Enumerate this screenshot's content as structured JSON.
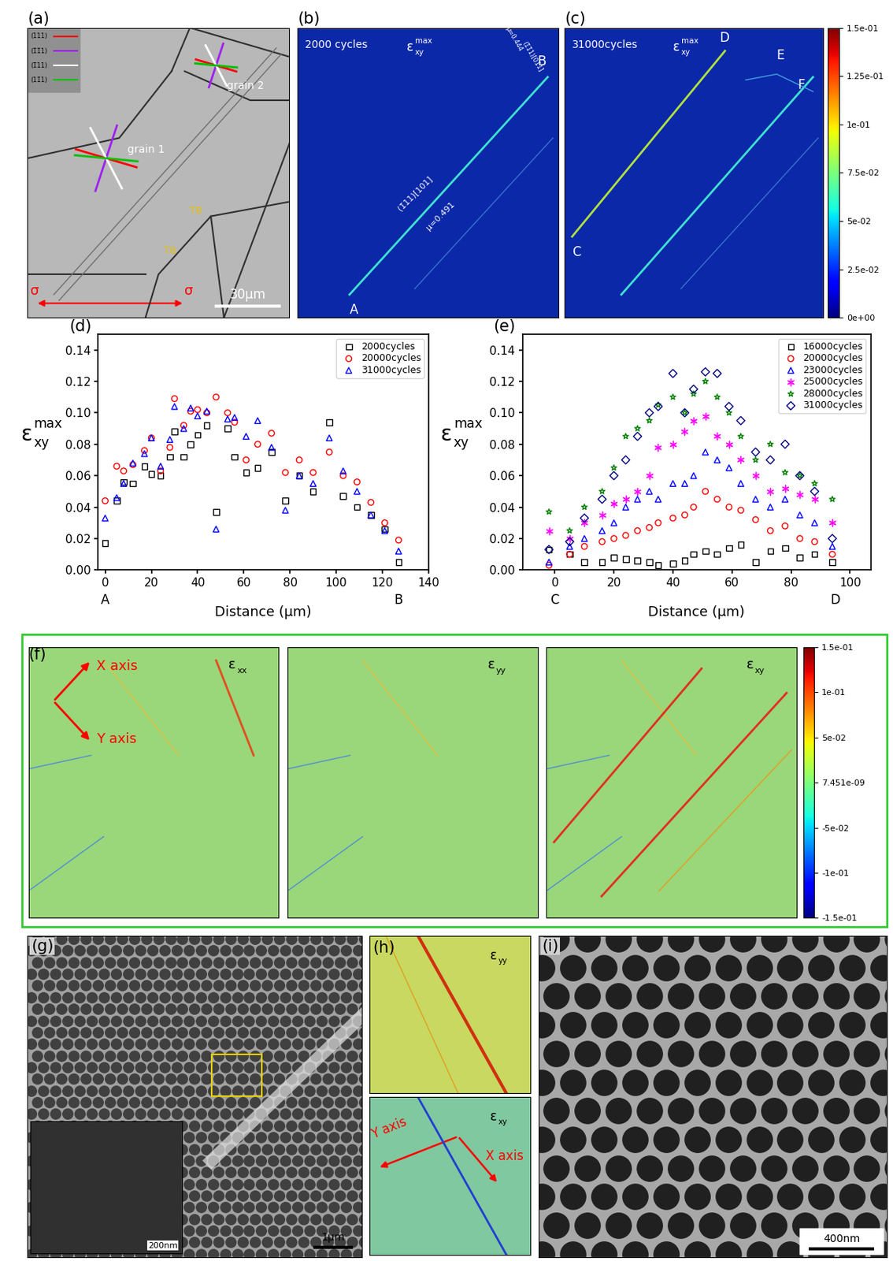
{
  "panels": {
    "a": {
      "label": "(a)",
      "legend": [
        {
          "text": "(111)",
          "color": "#ff0000"
        },
        {
          "text": "(1̄1̄1)",
          "color": "#a020f0"
        },
        {
          "text": "(1̄11)",
          "color": "#ffffff"
        },
        {
          "text": "(11̄1)",
          "color": "#00c000"
        }
      ],
      "texts": [
        "grain 1",
        "grain 2",
        "TB",
        "TB"
      ],
      "load": "σ",
      "scale_bar": "30μm"
    },
    "b": {
      "label": "(b)",
      "title": "2000 cycles",
      "quantity": {
        "symbol": "ε",
        "subscript": "xy",
        "superscript": "max"
      },
      "points": [
        "A",
        "B"
      ],
      "slip_systems": [
        {
          "plane": "(1̄11)[101]",
          "factor": "μ=0.491"
        },
        {
          "plane": "(1̄1̄1)[01̄1]",
          "factor": "μ=0.444"
        }
      ]
    },
    "c": {
      "label": "(c)",
      "title": "31000cycles",
      "quantity": {
        "symbol": "ε",
        "subscript": "xy",
        "superscript": "max"
      },
      "points": [
        "C",
        "D",
        "E",
        "F"
      ],
      "colorbar": {
        "range": [
          0,
          0.15
        ],
        "ticks": [
          {
            "value": 0,
            "label": "0e+00"
          },
          {
            "value": 0.025,
            "label": "2.5e-02"
          },
          {
            "value": 0.05,
            "label": "5e-02"
          },
          {
            "value": 0.075,
            "label": "7.5e-02"
          },
          {
            "value": 0.1,
            "label": "1e-01"
          },
          {
            "value": 0.125,
            "label": "1.25e-01"
          },
          {
            "value": 0.15,
            "label": "1.5e-01"
          }
        ]
      }
    },
    "f": {
      "label": "(f)",
      "axes_labels": [
        "X axis",
        "Y axis"
      ],
      "maps": [
        {
          "symbol": "ε",
          "subscript": "xx"
        },
        {
          "symbol": "ε",
          "subscript": "yy"
        },
        {
          "symbol": "ε",
          "subscript": "xy"
        }
      ],
      "colorbar": {
        "range": [
          -0.15,
          0.15
        ],
        "ticks": [
          {
            "value": 0.15,
            "label": "1.5e-01"
          },
          {
            "value": 0.1,
            "label": "1e-01"
          },
          {
            "value": 0.05,
            "label": "5e-02"
          },
          {
            "value": 7.451e-09,
            "label": "7.451e-09"
          },
          {
            "value": -0.05,
            "label": "-5e-02"
          },
          {
            "value": -0.1,
            "label": "-1e-01"
          },
          {
            "value": -0.15,
            "label": "-1.5e-01"
          }
        ]
      }
    },
    "g": {
      "label": "(g)",
      "scale_bar": "1μm",
      "inset_scale_bar": "200nm"
    },
    "h": {
      "label": "(h)",
      "maps": [
        {
          "symbol": "ε",
          "subscript": "yy"
        },
        {
          "symbol": "ε",
          "subscript": "xy"
        }
      ],
      "axes_labels": [
        "Y axis",
        "X axis"
      ]
    },
    "i": {
      "label": "(i)",
      "scale_bar": "400nm"
    }
  },
  "chart_data": [
    {
      "type": "scatter",
      "title": "(d)",
      "xlabel": "Distance (μm)",
      "ylabel": {
        "symbol": "ε",
        "subscript": "xy",
        "superscript": "max"
      },
      "x": [
        0,
        5,
        8,
        12,
        17,
        20,
        24,
        28,
        30,
        34,
        37,
        40,
        44,
        48,
        53,
        56,
        61,
        66,
        72,
        78,
        84,
        90,
        97,
        103,
        109,
        115,
        121,
        127
      ],
      "series": [
        {
          "name": "2000cycles",
          "color": "#000000",
          "marker": "square",
          "values": [
            0.017,
            0.044,
            0.056,
            0.055,
            0.066,
            0.061,
            0.06,
            0.072,
            0.088,
            0.072,
            0.08,
            0.086,
            0.092,
            0.037,
            0.09,
            0.072,
            0.062,
            0.065,
            0.075,
            0.044,
            0.06,
            0.05,
            0.094,
            0.047,
            0.04,
            0.035,
            0.026,
            0.005
          ]
        },
        {
          "name": "20000cycles",
          "color": "#ff0000",
          "marker": "circle",
          "values": [
            0.044,
            0.066,
            0.063,
            0.067,
            0.076,
            0.084,
            0.063,
            0.078,
            0.109,
            0.092,
            0.101,
            0.102,
            0.1,
            0.11,
            0.1,
            0.094,
            0.07,
            0.08,
            0.087,
            0.062,
            0.07,
            0.062,
            0.075,
            0.06,
            0.056,
            0.043,
            0.03,
            0.019
          ]
        },
        {
          "name": "31000cycles",
          "color": "#0000ff",
          "marker": "triangle",
          "values": [
            0.033,
            0.046,
            0.055,
            0.068,
            0.074,
            0.084,
            0.066,
            0.083,
            0.104,
            0.09,
            0.103,
            0.098,
            0.101,
            0.026,
            0.096,
            0.097,
            0.085,
            0.095,
            0.078,
            0.038,
            0.06,
            0.055,
            0.084,
            0.063,
            0.05,
            0.035,
            0.025,
            0.012
          ]
        }
      ],
      "xlim": [
        -3,
        140
      ],
      "xticks": [
        0,
        20,
        40,
        60,
        80,
        100,
        120,
        140
      ],
      "ylim": [
        0,
        0.15
      ],
      "yticks": [
        {
          "value": 0,
          "label": "0.00"
        },
        {
          "value": 0.02,
          "label": "0.02"
        },
        {
          "value": 0.04,
          "label": "0.04"
        },
        {
          "value": 0.06,
          "label": "0.06"
        },
        {
          "value": 0.08,
          "label": "0.08"
        },
        {
          "value": 0.1,
          "label": "0.10"
        },
        {
          "value": 0.12,
          "label": "0.12"
        },
        {
          "value": 0.14,
          "label": "0.14"
        }
      ],
      "legend": "upper right",
      "annotations": [
        {
          "text": "A",
          "x": 0
        },
        {
          "text": "B",
          "x": 127
        }
      ]
    },
    {
      "type": "scatter",
      "title": "(e)",
      "xlabel": "Distance (μm)",
      "ylabel": {
        "symbol": "ε",
        "subscript": "xy",
        "superscript": "max"
      },
      "x": [
        -2,
        5,
        10,
        16,
        20,
        24,
        28,
        32,
        35,
        40,
        44,
        47,
        51,
        55,
        59,
        63,
        68,
        73,
        78,
        83,
        88,
        94
      ],
      "series": [
        {
          "name": "16000cycles",
          "color": "#000000",
          "marker": "square",
          "values": [
            0.013,
            0.01,
            0.005,
            0.005,
            0.008,
            0.007,
            0.006,
            0.005,
            0.003,
            0.004,
            0.006,
            0.01,
            0.012,
            0.01,
            0.014,
            0.016,
            0.005,
            0.012,
            0.014,
            0.008,
            0.01,
            0.005
          ]
        },
        {
          "name": "20000cycles",
          "color": "#ff0000",
          "marker": "circle",
          "values": [
            0.003,
            0.01,
            0.015,
            0.018,
            0.02,
            0.022,
            0.025,
            0.027,
            0.03,
            0.033,
            0.035,
            0.04,
            0.05,
            0.045,
            0.04,
            0.038,
            0.032,
            0.025,
            0.028,
            0.02,
            0.018,
            0.01
          ]
        },
        {
          "name": "23000cycles",
          "color": "#0000ff",
          "marker": "triangle",
          "values": [
            0.005,
            0.015,
            0.02,
            0.025,
            0.03,
            0.04,
            0.045,
            0.05,
            0.045,
            0.055,
            0.055,
            0.06,
            0.075,
            0.07,
            0.065,
            0.055,
            0.045,
            0.04,
            0.045,
            0.035,
            0.03,
            0.015
          ]
        },
        {
          "name": "25000cycles",
          "color": "#ff00ff",
          "marker": "asterisk",
          "values": [
            0.025,
            0.02,
            0.03,
            0.035,
            0.042,
            0.045,
            0.05,
            0.06,
            0.078,
            0.08,
            0.088,
            0.095,
            0.098,
            0.085,
            0.08,
            0.07,
            0.06,
            0.05,
            0.052,
            0.048,
            0.045,
            0.03
          ]
        },
        {
          "name": "28000cycles",
          "color": "#008000",
          "marker": "star",
          "values": [
            0.037,
            0.025,
            0.04,
            0.05,
            0.065,
            0.085,
            0.09,
            0.095,
            0.105,
            0.11,
            0.1,
            0.112,
            0.12,
            0.11,
            0.1,
            0.085,
            0.07,
            0.08,
            0.062,
            0.06,
            0.055,
            0.045
          ]
        },
        {
          "name": "31000cycles",
          "color": "#000080",
          "marker": "diamond",
          "values": [
            0.013,
            0.018,
            0.033,
            0.045,
            0.06,
            0.07,
            0.085,
            0.1,
            0.104,
            0.125,
            0.1,
            0.115,
            0.126,
            0.125,
            0.104,
            0.095,
            0.075,
            0.07,
            0.08,
            0.06,
            0.05,
            0.02
          ]
        }
      ],
      "xlim": [
        -11,
        107
      ],
      "xticks": [
        0,
        20,
        40,
        60,
        80,
        100
      ],
      "ylim": [
        0,
        0.15
      ],
      "yticks": [
        {
          "value": 0,
          "label": "0.00"
        },
        {
          "value": 0.02,
          "label": "0.02"
        },
        {
          "value": 0.04,
          "label": "0.04"
        },
        {
          "value": 0.06,
          "label": "0.06"
        },
        {
          "value": 0.08,
          "label": "0.08"
        },
        {
          "value": 0.1,
          "label": "0.10"
        },
        {
          "value": 0.12,
          "label": "0.12"
        },
        {
          "value": 0.14,
          "label": "0.14"
        }
      ],
      "legend": "upper right",
      "annotations": [
        {
          "text": "C",
          "x": 0
        },
        {
          "text": "D",
          "x": 95
        }
      ]
    }
  ]
}
